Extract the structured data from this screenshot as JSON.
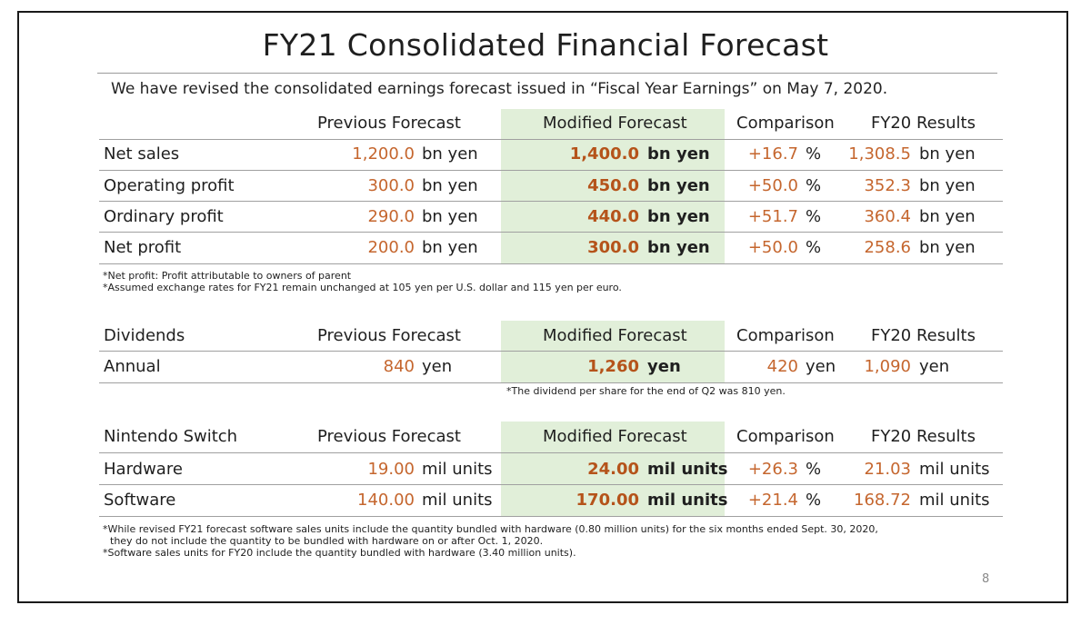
{
  "title": "FY21 Consolidated Financial Forecast",
  "subtitle": "We have revised the consolidated earnings forecast issued in “Fiscal Year Earnings” on May 7, 2020.",
  "headers": {
    "previous": "Previous Forecast",
    "modified": "Modified Forecast",
    "comparison": "Comparison",
    "fy20": "FY20 Results"
  },
  "earnings": {
    "rows": [
      {
        "label": "Net sales",
        "previous": "1,200.0",
        "prev_unit": "bn yen",
        "modified": "1,400.0",
        "mod_unit": "bn yen",
        "comparison": "+16.7",
        "comp_unit": "%",
        "fy20": "1,308.5",
        "fy20_unit": "bn yen"
      },
      {
        "label": "Operating profit",
        "previous": "300.0",
        "prev_unit": "bn yen",
        "modified": "450.0",
        "mod_unit": "bn yen",
        "comparison": "+50.0",
        "comp_unit": "%",
        "fy20": "352.3",
        "fy20_unit": "bn yen"
      },
      {
        "label": "Ordinary profit",
        "previous": "290.0",
        "prev_unit": "bn yen",
        "modified": "440.0",
        "mod_unit": "bn yen",
        "comparison": "+51.7",
        "comp_unit": "%",
        "fy20": "360.4",
        "fy20_unit": "bn yen"
      },
      {
        "label": "Net profit",
        "previous": "200.0",
        "prev_unit": "bn yen",
        "modified": "300.0",
        "mod_unit": "bn yen",
        "comparison": "+50.0",
        "comp_unit": "%",
        "fy20": "258.6",
        "fy20_unit": "bn yen"
      }
    ],
    "notes": [
      "*Net profit: Profit attributable to owners of parent",
      "*Assumed exchange rates for FY21 remain unchanged at 105 yen per U.S. dollar and 115 yen per euro."
    ]
  },
  "dividends": {
    "section_label": "Dividends",
    "row": {
      "label": "Annual",
      "previous": "840",
      "prev_unit": "yen",
      "modified": "1,260",
      "mod_unit": "yen",
      "comparison": "420",
      "comp_unit": "yen",
      "fy20": "1,090",
      "fy20_unit": "yen"
    },
    "note": "*The dividend per share for the end of Q2 was 810 yen."
  },
  "switch": {
    "section_label": "Nintendo Switch",
    "rows": [
      {
        "label": "Hardware",
        "previous": "19.00",
        "prev_unit": "mil units",
        "modified": "24.00",
        "mod_unit": "mil units",
        "comparison": "+26.3",
        "comp_unit": "%",
        "fy20": "21.03",
        "fy20_unit": "mil units"
      },
      {
        "label": "Software",
        "previous": "140.00",
        "prev_unit": "mil units",
        "modified": "170.00",
        "mod_unit": "mil units",
        "comparison": "+21.4",
        "comp_unit": "%",
        "fy20": "168.72",
        "fy20_unit": "mil units"
      }
    ],
    "notes": [
      "*While revised FY21 forecast software sales units include the quantity bundled with hardware (0.80 million units) for the six months ended Sept. 30, 2020,",
      "they do not include the quantity to be bundled with hardware on or after Oct. 1, 2020.",
      "*Software sales units for FY20 include the quantity bundled with hardware (3.40 million units)."
    ]
  },
  "page_number": "8"
}
